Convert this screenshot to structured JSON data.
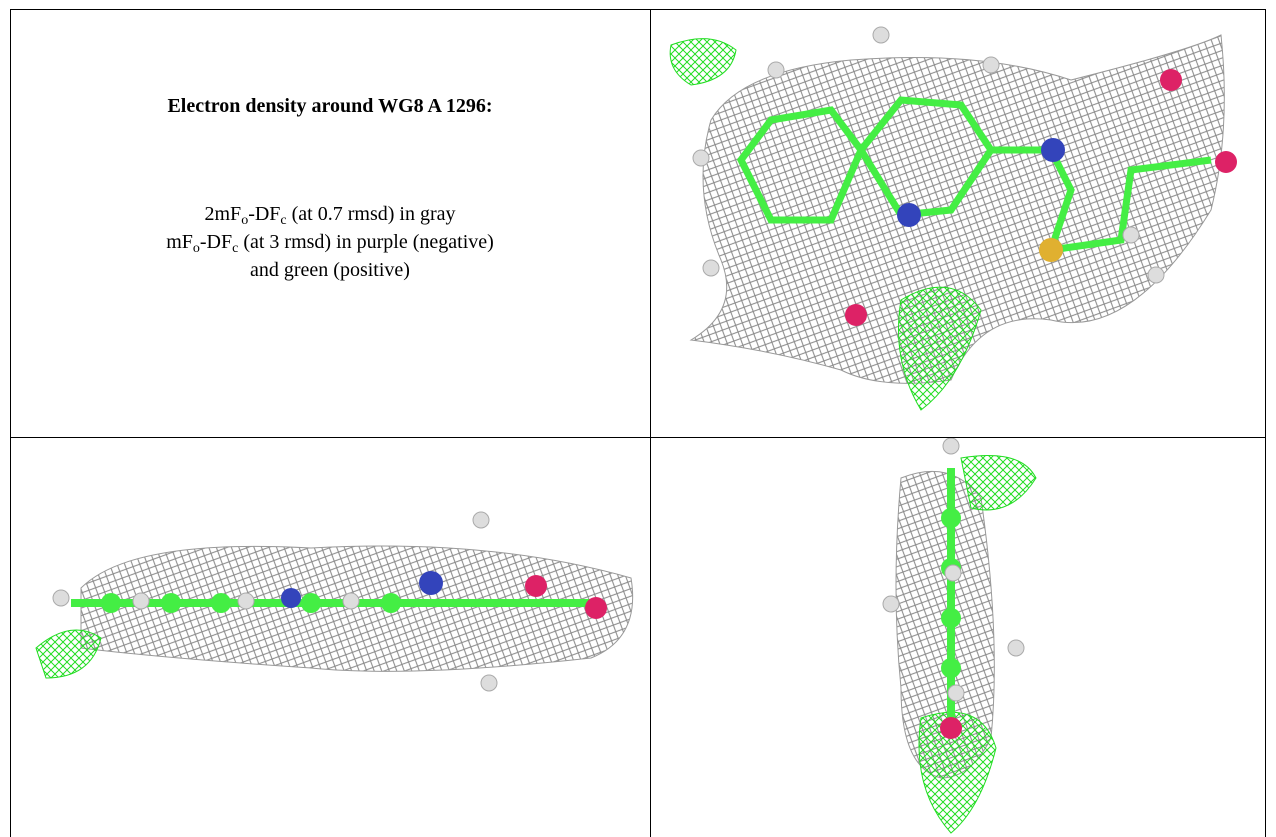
{
  "header": {
    "title": "Electron density around WG8 A 1296:"
  },
  "caption": {
    "lines": [
      [
        {
          "text": "2mF"
        },
        {
          "sub": "o"
        },
        {
          "text": "-DF"
        },
        {
          "sub": "c"
        },
        {
          "text": " (at 0.7 rmsd) in gray"
        }
      ],
      [
        {
          "text": "mF"
        },
        {
          "sub": "o"
        },
        {
          "text": "-DF"
        },
        {
          "sub": "c"
        },
        {
          "text": " (at 3 rmsd) in purple (negative)"
        }
      ],
      [
        {
          "text": "and green (positive)"
        }
      ]
    ]
  }
}
